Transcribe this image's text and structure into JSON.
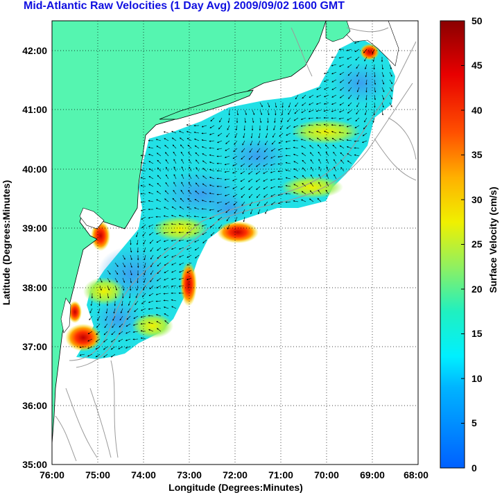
{
  "title": "Mid-Atlantic Raw Velocities (1 Day Avg) 2009/09/02 1600 GMT",
  "xlabel": "Longitude (Degrees:Minutes)",
  "ylabel": "Latitude (Degrees:Minutes)",
  "colorbar_label": "Surface Velocity (cm/s)",
  "x_ticks": [
    "76:00",
    "75:00",
    "74:00",
    "73:00",
    "72:00",
    "71:00",
    "70:00",
    "69:00",
    "68:00"
  ],
  "y_ticks": [
    "35:00",
    "36:00",
    "37:00",
    "38:00",
    "39:00",
    "40:00",
    "41:00",
    "42:00"
  ],
  "colorbar_ticks": [
    "0",
    "5",
    "10",
    "15",
    "20",
    "25",
    "30",
    "35",
    "40",
    "45",
    "50"
  ],
  "colors": {
    "title": "#1010e0",
    "land": "#55f5b0",
    "land_edge": "#000000",
    "bathymetry": "#9a9a9a",
    "grid": "#000000"
  },
  "chart_data": {
    "type": "heatmap",
    "title": "Mid-Atlantic Raw Velocities (1 Day Avg) 2009/09/02 1600 GMT",
    "xlabel": "Longitude (Degrees:Minutes)",
    "ylabel": "Latitude (Degrees:Minutes)",
    "xlim": [
      -76,
      -68
    ],
    "ylim": [
      35,
      42.5
    ],
    "colorbar": {
      "label": "Surface Velocity (cm/s)",
      "range": [
        0,
        50
      ],
      "colormap": "jet"
    },
    "grid": true,
    "hotspots_cm_s": [
      {
        "lon": -75.5,
        "lat": 37.2,
        "value": 45
      },
      {
        "lon": -72.0,
        "lat": 38.9,
        "value": 42
      },
      {
        "lon": -74.6,
        "lat": 38.8,
        "value": 38
      },
      {
        "lon": -72.9,
        "lat": 38.1,
        "value": 38
      },
      {
        "lon": -69.0,
        "lat": 42.0,
        "value": 45
      },
      {
        "lon": -75.3,
        "lat": 37.8,
        "value": 35
      }
    ]
  }
}
